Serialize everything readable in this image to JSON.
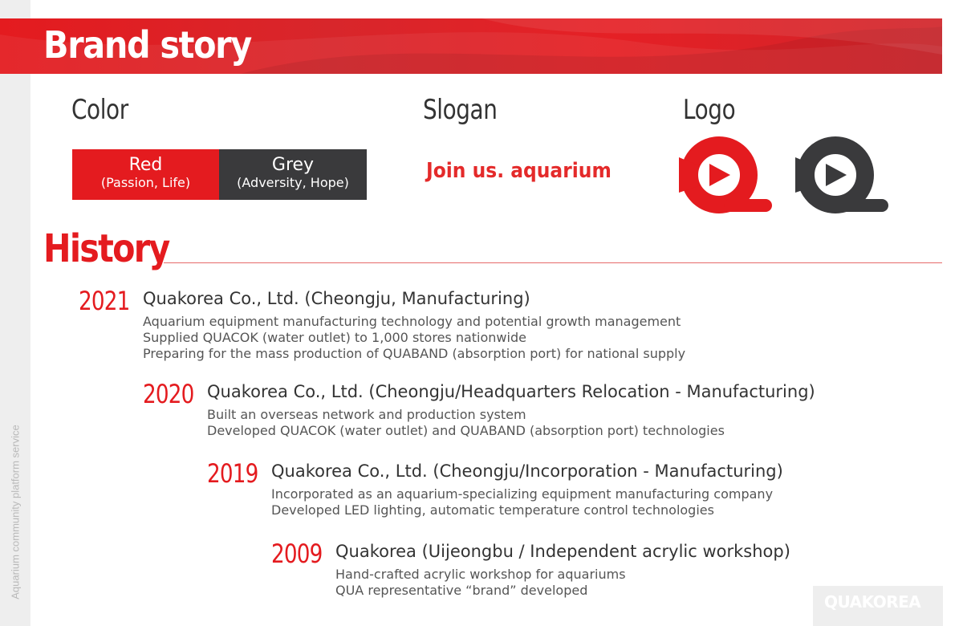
{
  "sidebar": {
    "text": "Aquarium community platform service"
  },
  "banner": {
    "title": "Brand story",
    "color": "#e41b1f"
  },
  "color_section": {
    "title": "Color",
    "swatches": [
      {
        "name": "Red",
        "desc": "(Passion, Life)",
        "color": "#e41b1f"
      },
      {
        "name": "Grey",
        "desc": "(Adversity, Hope)",
        "color": "#3a3a3c"
      }
    ]
  },
  "slogan_section": {
    "title": "Slogan",
    "text": "Join us. aquarium"
  },
  "logo_section": {
    "title": "Logo",
    "logos": [
      {
        "icon": "qua-logo-red-icon",
        "color": "#e41b1f"
      },
      {
        "icon": "qua-logo-grey-icon",
        "color": "#3a3a3c"
      }
    ]
  },
  "history": {
    "title": "History",
    "entries": [
      {
        "year": "2021",
        "title": "Quakorea Co., Ltd. (Cheongju, Manufacturing)",
        "lines": [
          "Aquarium equipment manufacturing technology and potential growth management",
          "Supplied QUACOK (water outlet) to 1,000 stores nationwide",
          "Preparing for the mass production of QUABAND (absorption port) for national supply"
        ]
      },
      {
        "year": "2020",
        "title": "Quakorea Co., Ltd. (Cheongju/Headquarters Relocation - Manufacturing)",
        "lines": [
          "Built an overseas network and production system",
          "Developed QUACOK (water outlet) and QUABAND (absorption port) technologies"
        ]
      },
      {
        "year": "2019",
        "title": "Quakorea Co., Ltd. (Cheongju/Incorporation - Manufacturing)",
        "lines": [
          "Incorporated as an aquarium-specializing equipment manufacturing company",
          "Developed LED lighting, automatic temperature control technologies"
        ]
      },
      {
        "year": "2009",
        "title": "Quakorea (Uijeongbu / Independent acrylic workshop)",
        "lines": [
          "Hand-crafted acrylic workshop for aquariums",
          "QUA representative “brand” developed"
        ]
      }
    ]
  },
  "footer": {
    "brand": "QUAKOREA"
  }
}
